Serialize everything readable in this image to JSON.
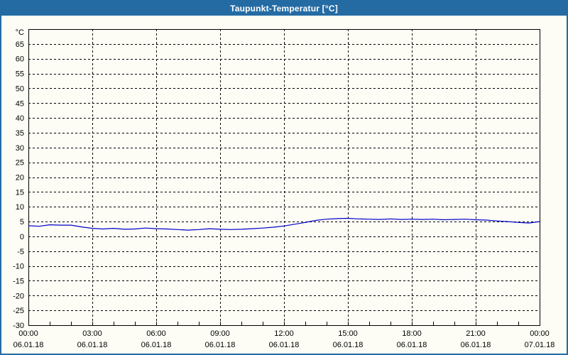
{
  "window": {
    "title": "Taupunkt-Temperatur [°C]",
    "title_bar_color": "#246BA4",
    "border_color": "#246BA4",
    "background_color": "#FDFDF6"
  },
  "chart_data": {
    "type": "line",
    "title": "Taupunkt-Temperatur [°C]",
    "xlabel": "",
    "ylabel": "°C",
    "ylim": [
      -30,
      70
    ],
    "xlim_hours": [
      0,
      24
    ],
    "grid": "dashed",
    "gridline_color": "#000000",
    "line_color": "#0000C8",
    "y_tick_step": 5,
    "y_ticks": [
      65,
      60,
      55,
      50,
      45,
      40,
      35,
      30,
      25,
      20,
      15,
      10,
      5,
      0,
      -5,
      -10,
      -15,
      -20,
      -25,
      -30
    ],
    "x_minor_tick_hours": 1,
    "x_ticks": [
      {
        "hour": 0,
        "time": "00:00",
        "date": "06.01.18"
      },
      {
        "hour": 3,
        "time": "03:00",
        "date": "06.01.18"
      },
      {
        "hour": 6,
        "time": "06:00",
        "date": "06.01.18"
      },
      {
        "hour": 9,
        "time": "09:00",
        "date": "06.01.18"
      },
      {
        "hour": 12,
        "time": "12:00",
        "date": "06.01.18"
      },
      {
        "hour": 15,
        "time": "15:00",
        "date": "06.01.18"
      },
      {
        "hour": 18,
        "time": "18:00",
        "date": "06.01.18"
      },
      {
        "hour": 21,
        "time": "21:00",
        "date": "06.01.18"
      },
      {
        "hour": 24,
        "time": "00:00",
        "date": "07.01.18"
      }
    ],
    "series": [
      {
        "name": "Taupunkt-Temperatur",
        "color": "#0000C8",
        "x_hours": [
          0,
          0.5,
          1,
          1.5,
          2,
          2.5,
          3,
          3.5,
          4,
          4.5,
          5,
          5.5,
          6,
          6.5,
          7,
          7.5,
          8,
          8.5,
          9,
          9.5,
          10,
          10.5,
          11,
          11.5,
          12,
          12.5,
          13,
          13.5,
          14,
          14.5,
          15,
          15.5,
          16,
          16.5,
          17,
          17.5,
          18,
          18.5,
          19,
          19.5,
          20,
          20.5,
          21,
          21.5,
          22,
          22.5,
          23,
          23.5,
          24
        ],
        "values": [
          3.6,
          3.4,
          3.9,
          3.8,
          3.8,
          3.2,
          2.7,
          2.5,
          2.7,
          2.4,
          2.5,
          2.8,
          2.6,
          2.5,
          2.3,
          2.1,
          2.3,
          2.6,
          2.4,
          2.3,
          2.4,
          2.6,
          2.8,
          3.1,
          3.5,
          4.1,
          4.7,
          5.4,
          5.8,
          6.0,
          6.1,
          5.9,
          5.8,
          5.7,
          5.9,
          5.7,
          5.8,
          5.7,
          5.8,
          5.6,
          5.7,
          5.8,
          5.6,
          5.5,
          5.2,
          5.0,
          4.7,
          4.5,
          5.0
        ]
      }
    ]
  }
}
